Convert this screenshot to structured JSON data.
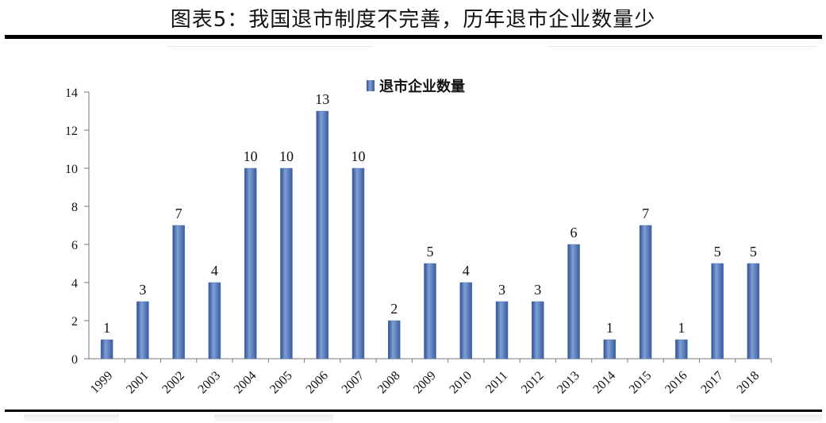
{
  "title": "图表5：我国退市制度不完善，历年退市企业数量少",
  "chart_data": {
    "type": "bar",
    "categories": [
      "1999",
      "2001",
      "2002",
      "2003",
      "2004",
      "2005",
      "2006",
      "2007",
      "2008",
      "2009",
      "2010",
      "2011",
      "2012",
      "2013",
      "2014",
      "2015",
      "2016",
      "2017",
      "2018"
    ],
    "series": [
      {
        "name": "退市企业数量",
        "values": [
          1,
          3,
          7,
          4,
          10,
          10,
          13,
          10,
          2,
          5,
          4,
          3,
          3,
          6,
          1,
          7,
          1,
          5,
          5
        ]
      }
    ],
    "yticks": [
      "0",
      "2",
      "4",
      "6",
      "8",
      "10",
      "12",
      "14"
    ],
    "ylim": [
      0,
      14
    ],
    "legend": "top-left",
    "grid": false,
    "bar_color": "#4f74b5"
  }
}
